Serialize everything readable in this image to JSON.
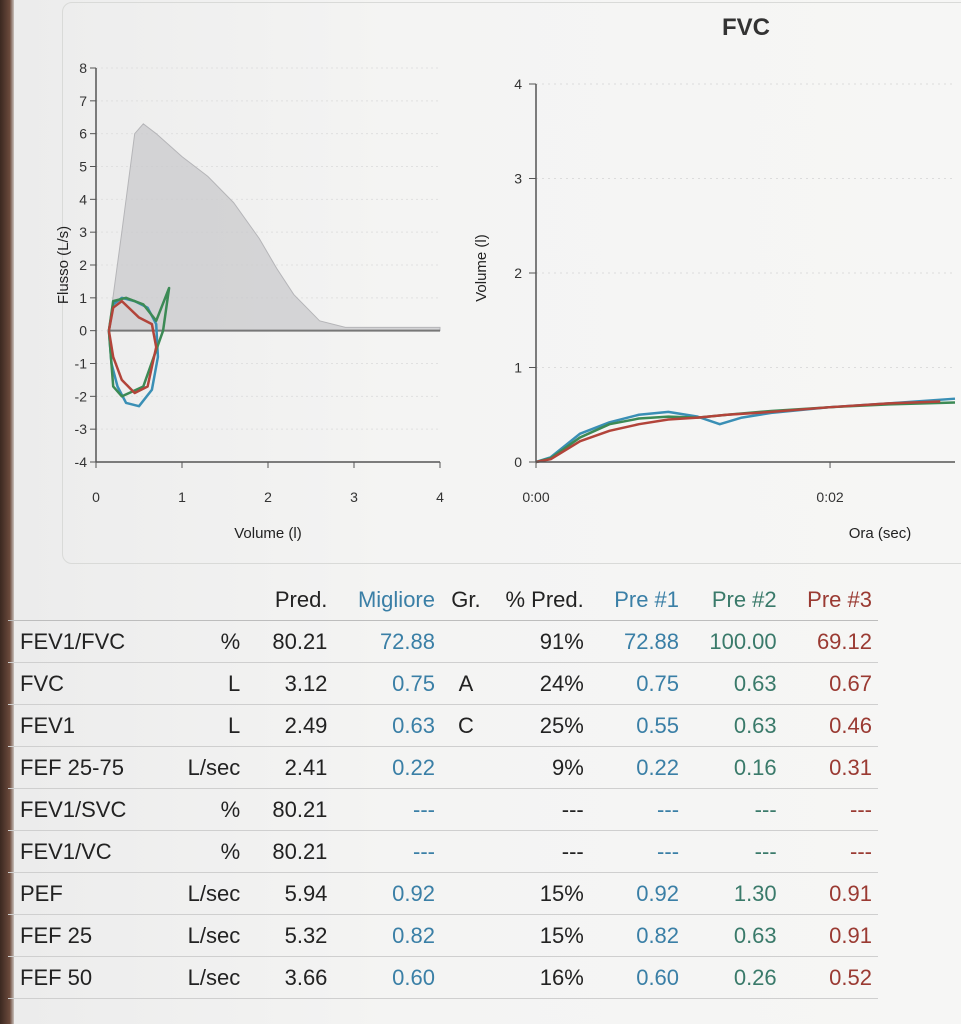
{
  "report": {
    "title": "FVC"
  },
  "flow_volume_chart": {
    "type": "line",
    "ylabel": "Flusso (L/s)",
    "xlabel": "Volume (l)",
    "xlim": [
      0,
      4
    ],
    "ylim": [
      -4,
      8
    ],
    "x_ticks": [
      "0",
      "1",
      "2",
      "3",
      "4"
    ],
    "y_ticks": [
      "8",
      "7",
      "6",
      "5",
      "4",
      "3",
      "2",
      "1",
      "0",
      "-1",
      "-2",
      "-3",
      "-4"
    ],
    "predicted_envelope": {
      "x": [
        0.15,
        0.3,
        0.45,
        0.55,
        0.7,
        1.0,
        1.3,
        1.6,
        1.9,
        2.1,
        2.3,
        2.6,
        2.9,
        4.0
      ],
      "y": [
        0.1,
        3.0,
        6.0,
        6.3,
        6.0,
        5.3,
        4.7,
        3.9,
        2.8,
        1.9,
        1.1,
        0.3,
        0.1,
        0.1
      ]
    },
    "series": [
      {
        "name": "Pre #1",
        "color": "#3a8fb5",
        "x": [
          0.15,
          0.2,
          0.3,
          0.45,
          0.6,
          0.7,
          0.72,
          0.65,
          0.5,
          0.35,
          0.25,
          0.18,
          0.15
        ],
        "y": [
          0.0,
          0.8,
          1.0,
          0.9,
          0.7,
          0.2,
          -0.8,
          -1.8,
          -2.3,
          -2.2,
          -1.7,
          -1.0,
          0.0
        ]
      },
      {
        "name": "Pre #2",
        "color": "#3c8a55",
        "x": [
          0.15,
          0.2,
          0.35,
          0.55,
          0.7,
          0.85,
          0.78,
          0.55,
          0.3,
          0.2,
          0.15
        ],
        "y": [
          0.0,
          0.9,
          1.0,
          0.8,
          0.3,
          1.3,
          0.0,
          -1.7,
          -2.0,
          -1.7,
          0.0
        ]
      },
      {
        "name": "Pre #3",
        "color": "#b2443a",
        "x": [
          0.15,
          0.2,
          0.3,
          0.5,
          0.65,
          0.7,
          0.6,
          0.45,
          0.3,
          0.2,
          0.15
        ],
        "y": [
          0.0,
          0.7,
          0.9,
          0.4,
          0.2,
          -0.5,
          -1.7,
          -1.9,
          -1.5,
          -0.8,
          0.0
        ]
      }
    ]
  },
  "volume_time_chart": {
    "type": "line",
    "ylabel": "Volume (l)",
    "xlabel": "Ora (sec)",
    "xlim": [
      0,
      2.85
    ],
    "ylim": [
      0,
      4
    ],
    "x_ticks": [
      "0:00",
      "0:02"
    ],
    "x_tick_values": [
      0,
      2
    ],
    "y_ticks": [
      "4",
      "3",
      "2",
      "1",
      "0"
    ],
    "series": [
      {
        "name": "Pre #1",
        "color": "#3a8fb5",
        "x": [
          0,
          0.1,
          0.3,
          0.5,
          0.7,
          0.9,
          1.1,
          1.25,
          1.4,
          1.6,
          2.0,
          2.4,
          2.85
        ],
        "y": [
          0,
          0.05,
          0.3,
          0.42,
          0.5,
          0.53,
          0.48,
          0.4,
          0.47,
          0.52,
          0.58,
          0.62,
          0.67
        ]
      },
      {
        "name": "Pre #2",
        "color": "#3c8a55",
        "x": [
          0,
          0.1,
          0.3,
          0.5,
          0.7,
          0.9,
          1.1,
          1.3,
          1.6,
          2.0,
          2.4,
          2.85
        ],
        "y": [
          0,
          0.04,
          0.26,
          0.4,
          0.46,
          0.48,
          0.47,
          0.5,
          0.54,
          0.58,
          0.61,
          0.63
        ]
      },
      {
        "name": "Pre #3",
        "color": "#b2443a",
        "x": [
          0,
          0.1,
          0.3,
          0.5,
          0.7,
          0.9,
          1.1,
          1.3,
          1.6,
          2.0,
          2.4,
          2.75
        ],
        "y": [
          0,
          0.03,
          0.22,
          0.33,
          0.4,
          0.45,
          0.47,
          0.5,
          0.53,
          0.58,
          0.62,
          0.64
        ]
      }
    ]
  },
  "table": {
    "headers": {
      "pred": "Pred.",
      "best": "Migliore",
      "gr": "Gr.",
      "pct": "% Pred.",
      "p1": "Pre #1",
      "p2": "Pre #2",
      "p3": "Pre #3"
    },
    "rows": [
      {
        "name": "FEV1/FVC",
        "unit": "%",
        "pred": "80.21",
        "best": "72.88",
        "gr": "",
        "pct": "91%",
        "p1": "72.88",
        "p2": "100.00",
        "p3": "69.12"
      },
      {
        "name": "FVC",
        "unit": "L",
        "pred": "3.12",
        "best": "0.75",
        "gr": "A",
        "pct": "24%",
        "p1": "0.75",
        "p2": "0.63",
        "p3": "0.67"
      },
      {
        "name": "FEV1",
        "unit": "L",
        "pred": "2.49",
        "best": "0.63",
        "gr": "C",
        "pct": "25%",
        "p1": "0.55",
        "p2": "0.63",
        "p3": "0.46"
      },
      {
        "name": "FEF 25-75",
        "unit": "L/sec",
        "pred": "2.41",
        "best": "0.22",
        "gr": "",
        "pct": "9%",
        "p1": "0.22",
        "p2": "0.16",
        "p3": "0.31"
      },
      {
        "name": "FEV1/SVC",
        "unit": "%",
        "pred": "80.21",
        "best": "---",
        "gr": "",
        "pct": "---",
        "p1": "---",
        "p2": "---",
        "p3": "---"
      },
      {
        "name": "FEV1/VC",
        "unit": "%",
        "pred": "80.21",
        "best": "---",
        "gr": "",
        "pct": "---",
        "p1": "---",
        "p2": "---",
        "p3": "---"
      },
      {
        "name": "PEF",
        "unit": "L/sec",
        "pred": "5.94",
        "best": "0.92",
        "gr": "",
        "pct": "15%",
        "p1": "0.92",
        "p2": "1.30",
        "p3": "0.91"
      },
      {
        "name": "FEF 25",
        "unit": "L/sec",
        "pred": "5.32",
        "best": "0.82",
        "gr": "",
        "pct": "15%",
        "p1": "0.82",
        "p2": "0.63",
        "p3": "0.91"
      },
      {
        "name": "FEF 50",
        "unit": "L/sec",
        "pred": "3.66",
        "best": "0.60",
        "gr": "",
        "pct": "16%",
        "p1": "0.60",
        "p2": "0.26",
        "p3": "0.52"
      }
    ]
  }
}
